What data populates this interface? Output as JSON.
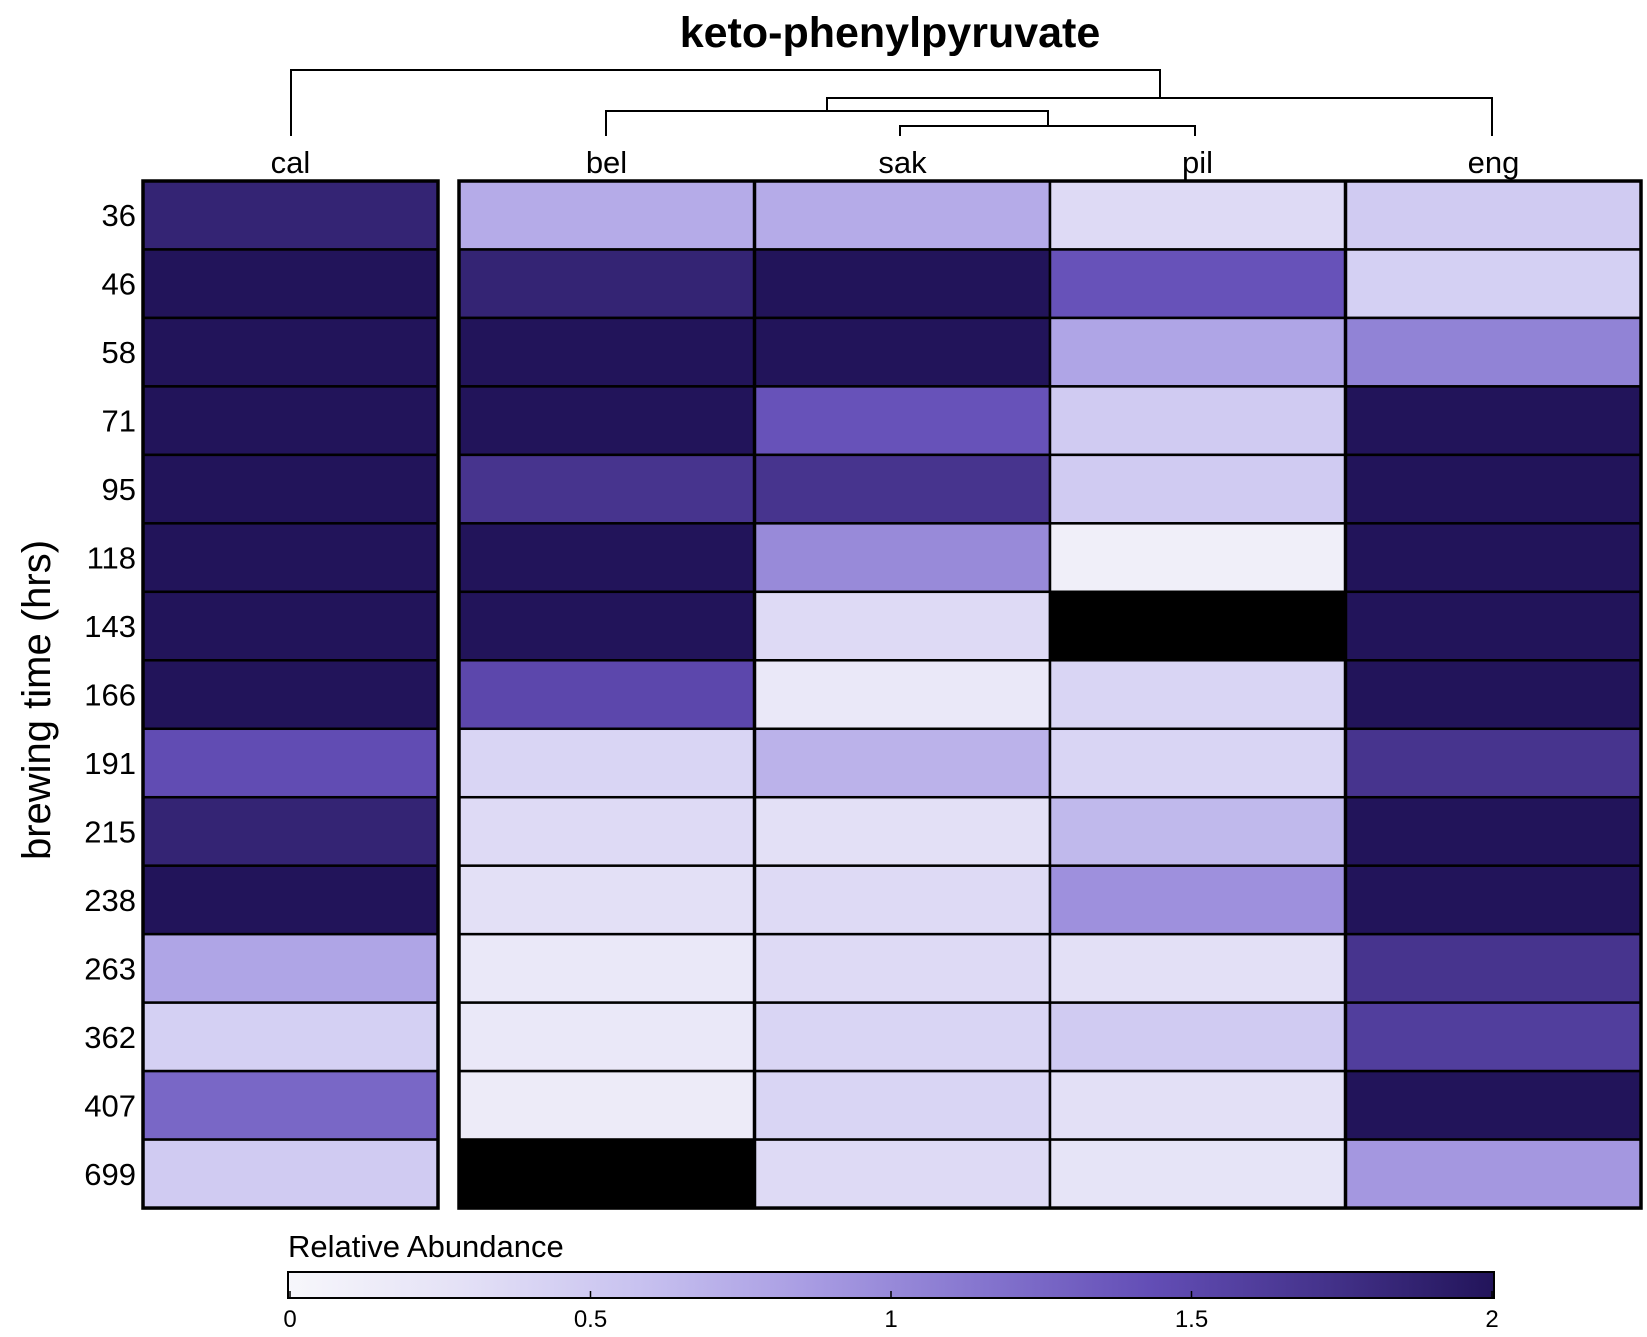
{
  "chart_data": {
    "type": "heatmap",
    "title": "keto-phenylpyruvate",
    "ylabel": "brewing time (hrs)",
    "columns": [
      "cal",
      "bel",
      "sak",
      "pil",
      "eng"
    ],
    "rows": [
      "36",
      "46",
      "58",
      "71",
      "95",
      "118",
      "143",
      "166",
      "191",
      "215",
      "238",
      "263",
      "362",
      "407",
      "699"
    ],
    "values": [
      [
        1.85,
        0.75,
        0.75,
        0.35,
        0.5
      ],
      [
        2.0,
        1.85,
        2.0,
        1.4,
        0.45
      ],
      [
        2.0,
        2.0,
        2.0,
        0.8,
        1.05
      ],
      [
        2.0,
        2.0,
        1.4,
        0.5,
        2.0
      ],
      [
        2.0,
        1.7,
        1.7,
        0.5,
        2.0
      ],
      [
        2.0,
        2.0,
        1.0,
        0.1,
        2.0
      ],
      [
        2.0,
        2.0,
        0.35,
        null,
        2.0
      ],
      [
        2.0,
        1.5,
        0.2,
        0.4,
        2.0
      ],
      [
        1.45,
        0.4,
        0.7,
        0.4,
        1.7
      ],
      [
        1.85,
        0.35,
        0.3,
        0.65,
        2.0
      ],
      [
        2.0,
        0.3,
        0.35,
        0.95,
        2.0
      ],
      [
        0.8,
        0.2,
        0.35,
        0.3,
        1.7
      ],
      [
        0.45,
        0.2,
        0.4,
        0.5,
        1.6
      ],
      [
        1.25,
        0.15,
        0.4,
        0.3,
        2.0
      ],
      [
        0.5,
        null,
        0.35,
        0.25,
        0.9
      ]
    ],
    "missing_color": "#000000",
    "colorscale": {
      "min": 0,
      "max": 2,
      "stops": [
        "#f7f7fb",
        "#e4e1f6",
        "#c9c3f0",
        "#a99de3",
        "#8676cf",
        "#634eb6",
        "#45338c",
        "#22145a"
      ]
    },
    "legend": {
      "title": "Relative Abundance",
      "ticks": [
        "0",
        "0.5",
        "1",
        "1.5",
        "2"
      ],
      "placement": "bottom"
    }
  }
}
